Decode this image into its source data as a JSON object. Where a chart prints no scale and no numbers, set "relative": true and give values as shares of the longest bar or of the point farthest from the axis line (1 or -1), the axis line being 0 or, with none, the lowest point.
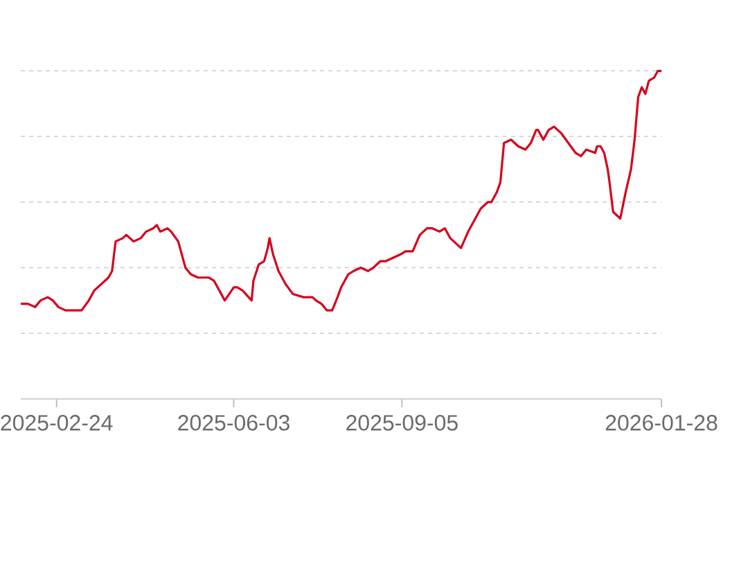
{
  "chart_data": {
    "type": "line",
    "relative": true,
    "grid": "y",
    "color": "#d7001b",
    "xlim": [
      "2025-02-04",
      "2026-01-28"
    ],
    "xticks": [
      "2025-02-24",
      "2025-06-03",
      "2025-09-05",
      "2026-01-28"
    ],
    "x": [
      "2025-02-04",
      "2025-02-08",
      "2025-02-12",
      "2025-02-15",
      "2025-02-19",
      "2025-02-22",
      "2025-02-25",
      "2025-03-01",
      "2025-03-05",
      "2025-03-10",
      "2025-03-14",
      "2025-03-17",
      "2025-03-21",
      "2025-03-25",
      "2025-03-27",
      "2025-03-29",
      "2025-04-02",
      "2025-04-04",
      "2025-04-08",
      "2025-04-12",
      "2025-04-15",
      "2025-04-19",
      "2025-04-21",
      "2025-04-23",
      "2025-04-27",
      "2025-04-29",
      "2025-05-03",
      "2025-05-07",
      "2025-05-10",
      "2025-05-14",
      "2025-05-20",
      "2025-05-23",
      "2025-05-29",
      "2025-06-03",
      "2025-06-05",
      "2025-06-08",
      "2025-06-13",
      "2025-06-14",
      "2025-06-17",
      "2025-06-20",
      "2025-06-22",
      "2025-06-23",
      "2025-06-25",
      "2025-06-28",
      "2025-07-02",
      "2025-07-06",
      "2025-07-12",
      "2025-07-17",
      "2025-07-19",
      "2025-07-22",
      "2025-07-25",
      "2025-07-28",
      "2025-07-31",
      "2025-08-02",
      "2025-08-06",
      "2025-08-09",
      "2025-08-13",
      "2025-08-17",
      "2025-08-20",
      "2025-08-24",
      "2025-08-27",
      "2025-08-31",
      "2025-09-04",
      "2025-09-07",
      "2025-09-11",
      "2025-09-15",
      "2025-09-19",
      "2025-09-22",
      "2025-09-26",
      "2025-09-29",
      "2025-10-02",
      "2025-10-06",
      "2025-10-08",
      "2025-10-12",
      "2025-10-15",
      "2025-10-19",
      "2025-10-23",
      "2025-10-25",
      "2025-10-28",
      "2025-10-30",
      "2025-11-01",
      "2025-11-05",
      "2025-11-09",
      "2025-11-13",
      "2025-11-16",
      "2025-11-19",
      "2025-11-20",
      "2025-11-23",
      "2025-11-26",
      "2025-11-29",
      "2025-12-03",
      "2025-12-07",
      "2025-12-11",
      "2025-12-14",
      "2025-12-17",
      "2025-12-22",
      "2025-12-23",
      "2025-12-25",
      "2025-12-27",
      "2025-12-29",
      "2025-12-30",
      "2026-01-01",
      "2026-01-03",
      "2026-01-05",
      "2026-01-08",
      "2026-01-11",
      "2026-01-13",
      "2026-01-15",
      "2026-01-17",
      "2026-01-19",
      "2026-01-21",
      "2026-01-24",
      "2026-01-26",
      "2026-01-28"
    ],
    "values": [
      0.29,
      0.29,
      0.28,
      0.3,
      0.31,
      0.3,
      0.28,
      0.27,
      0.27,
      0.27,
      0.3,
      0.33,
      0.35,
      0.37,
      0.39,
      0.48,
      0.49,
      0.5,
      0.48,
      0.49,
      0.51,
      0.52,
      0.53,
      0.51,
      0.52,
      0.51,
      0.48,
      0.4,
      0.38,
      0.37,
      0.37,
      0.36,
      0.3,
      0.34,
      0.34,
      0.33,
      0.3,
      0.36,
      0.41,
      0.42,
      0.46,
      0.49,
      0.44,
      0.39,
      0.35,
      0.32,
      0.31,
      0.31,
      0.3,
      0.29,
      0.27,
      0.27,
      0.31,
      0.34,
      0.38,
      0.39,
      0.4,
      0.39,
      0.4,
      0.42,
      0.42,
      0.43,
      0.44,
      0.45,
      0.45,
      0.5,
      0.52,
      0.52,
      0.51,
      0.52,
      0.49,
      0.47,
      0.46,
      0.51,
      0.54,
      0.58,
      0.6,
      0.6,
      0.63,
      0.66,
      0.78,
      0.79,
      0.77,
      0.76,
      0.78,
      0.82,
      0.82,
      0.79,
      0.82,
      0.83,
      0.81,
      0.78,
      0.75,
      0.74,
      0.76,
      0.75,
      0.77,
      0.77,
      0.75,
      0.7,
      0.66,
      0.57,
      0.56,
      0.55,
      0.63,
      0.7,
      0.79,
      0.92,
      0.95,
      0.93,
      0.97,
      0.98,
      1.0,
      1.0
    ]
  }
}
